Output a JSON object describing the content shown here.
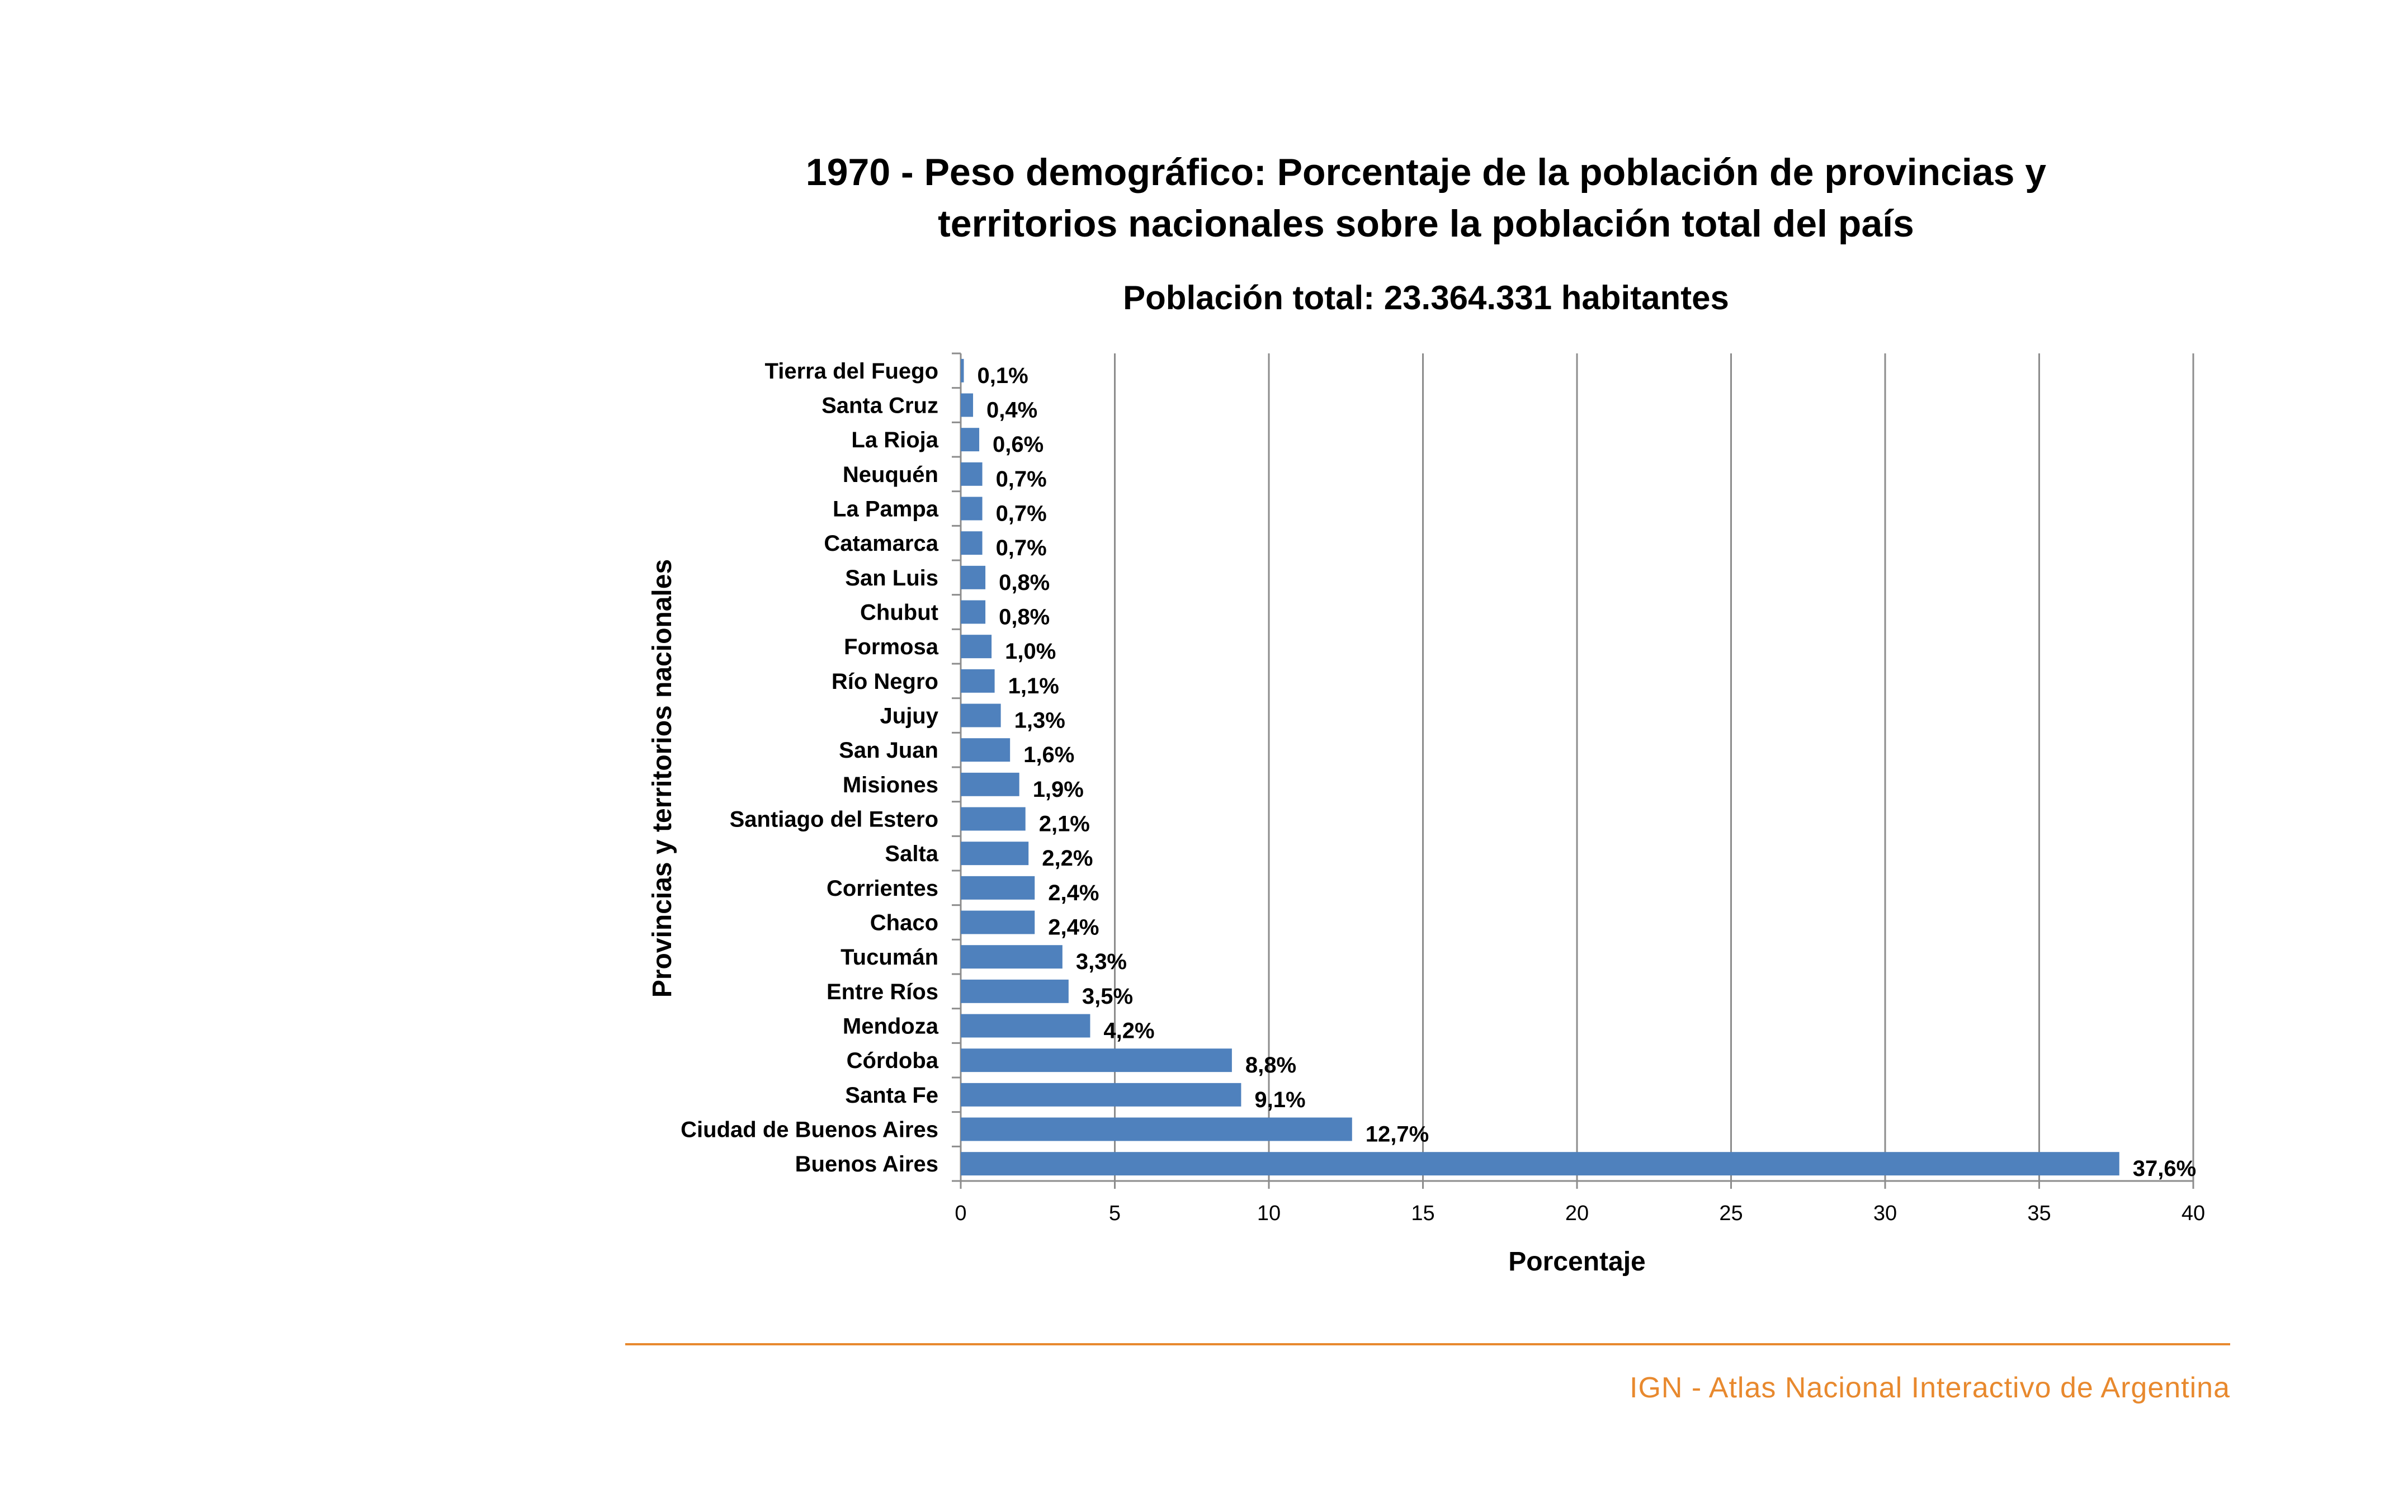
{
  "chart_data": {
    "type": "bar",
    "orientation": "horizontal",
    "title": [
      "1970 - Peso demográfico: Porcentaje de la población de provincias y",
      "territorios nacionales sobre la población total del país"
    ],
    "subtitle": "Población total: 23.364.331 habitantes",
    "xlabel": "Porcentaje",
    "ylabel": "Provincias y territorios nacionales",
    "xlim": [
      0,
      40
    ],
    "xticks": [
      0,
      5,
      10,
      15,
      20,
      25,
      30,
      35,
      40
    ],
    "grid": "vertical",
    "bar_color": "#4f81bd",
    "categories": [
      "Tierra del Fuego",
      "Santa Cruz",
      "La Rioja",
      "Neuquén",
      "La Pampa",
      "Catamarca",
      "San Luis",
      "Chubut",
      "Formosa",
      "Río Negro",
      "Jujuy",
      "San Juan",
      "Misiones",
      "Santiago del Estero",
      "Salta",
      "Corrientes",
      "Chaco",
      "Tucumán",
      "Entre Ríos",
      "Mendoza",
      "Córdoba",
      "Santa Fe",
      "Ciudad de Buenos Aires",
      "Buenos Aires"
    ],
    "values": [
      0.1,
      0.4,
      0.6,
      0.7,
      0.7,
      0.7,
      0.8,
      0.8,
      1.0,
      1.1,
      1.3,
      1.6,
      1.9,
      2.1,
      2.2,
      2.4,
      2.4,
      3.3,
      3.5,
      4.2,
      8.8,
      9.1,
      12.7,
      37.6
    ],
    "data_labels": [
      "0,1%",
      "0,4%",
      "0,6%",
      "0,7%",
      "0,7%",
      "0,7%",
      "0,8%",
      "0,8%",
      "1,0%",
      "1,1%",
      "1,3%",
      "1,6%",
      "1,9%",
      "2,1%",
      "2,2%",
      "2,4%",
      "2,4%",
      "3,3%",
      "3,5%",
      "4,2%",
      "8,8%",
      "9,1%",
      "12,7%",
      "37,6%"
    ]
  },
  "footer": {
    "text": "IGN - Atlas Nacional Interactivo de Argentina",
    "color": "#e8892e"
  }
}
